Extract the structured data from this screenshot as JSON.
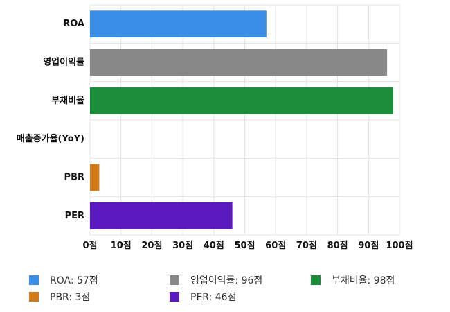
{
  "chart_data": {
    "type": "bar",
    "orientation": "horizontal",
    "categories": [
      "ROA",
      "영업이익률",
      "부채비율",
      "매출증가율(YoY)",
      "PBR",
      "PER"
    ],
    "values": [
      57,
      96,
      98,
      null,
      3,
      46
    ],
    "colors": [
      "#3a8ee6",
      "#888888",
      "#1a8e3a",
      "#cccccc",
      "#d07a1a",
      "#5a1ac0"
    ],
    "xlim": [
      0,
      100
    ],
    "xticks": [
      0,
      10,
      20,
      30,
      40,
      50,
      60,
      70,
      80,
      90,
      100
    ],
    "xtick_labels": [
      "0점",
      "10점",
      "20점",
      "30점",
      "40점",
      "50점",
      "60점",
      "70점",
      "80점",
      "90점",
      "100점"
    ],
    "grid": true,
    "legend": [
      {
        "label": "ROA: 57점",
        "color": "#3a8ee6"
      },
      {
        "label": "영업이익률: 96점",
        "color": "#888888"
      },
      {
        "label": "부채비율: 98점",
        "color": "#1a8e3a"
      },
      {
        "label": "PBR: 3점",
        "color": "#d07a1a"
      },
      {
        "label": "PER: 46점",
        "color": "#5a1ac0"
      }
    ]
  }
}
